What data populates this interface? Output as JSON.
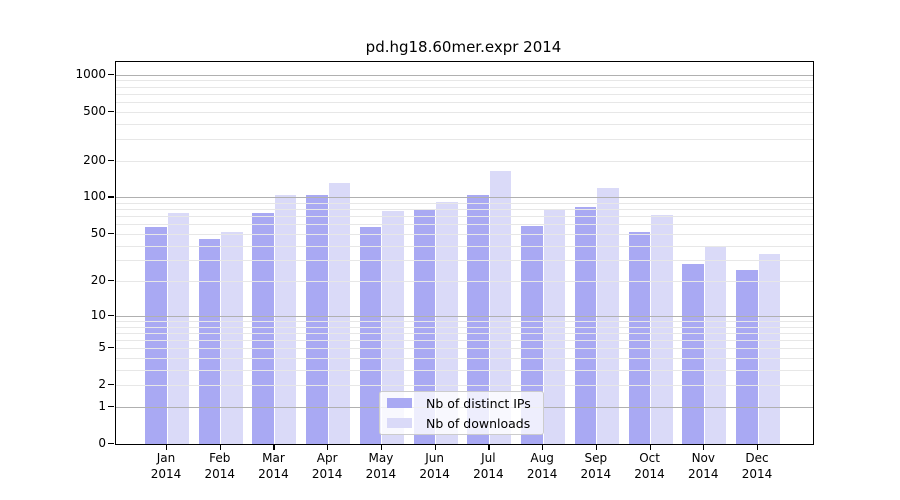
{
  "chart_data": {
    "type": "bar",
    "title": "pd.hg18.60mer.expr 2014",
    "categories": [
      "Jan",
      "Feb",
      "Mar",
      "Apr",
      "May",
      "Jun",
      "Jul",
      "Aug",
      "Sep",
      "Oct",
      "Nov",
      "Dec"
    ],
    "x_year": "2014",
    "series": [
      {
        "name": "Nb of distinct IPs",
        "color": "#a9a9f3",
        "values": [
          57,
          45,
          75,
          105,
          57,
          78,
          105,
          58,
          84,
          52,
          28,
          25
        ]
      },
      {
        "name": "Nb of downloads",
        "color": "#dadaf8",
        "values": [
          75,
          52,
          104,
          130,
          77,
          91,
          165,
          78,
          120,
          71,
          40,
          34
        ]
      }
    ],
    "yscale": "log10(v+1)",
    "ylim": [
      0,
      1270
    ],
    "y_tick_labels": [
      1000,
      500,
      200,
      100,
      50,
      20,
      10,
      5,
      2,
      1,
      0
    ],
    "grid": "on",
    "grid_major_values": [
      1,
      10,
      100,
      1000
    ],
    "grid_minor_values": [
      2,
      3,
      4,
      5,
      6,
      7,
      8,
      9,
      20,
      30,
      40,
      50,
      60,
      70,
      80,
      90,
      200,
      300,
      400,
      500,
      600,
      700,
      800,
      900
    ],
    "legend_position": "lower center",
    "colors": {
      "grid_major": "#b0b0b0",
      "grid_minor": "#e7e7e7",
      "spine": "#000000",
      "background": "#ffffff"
    }
  }
}
